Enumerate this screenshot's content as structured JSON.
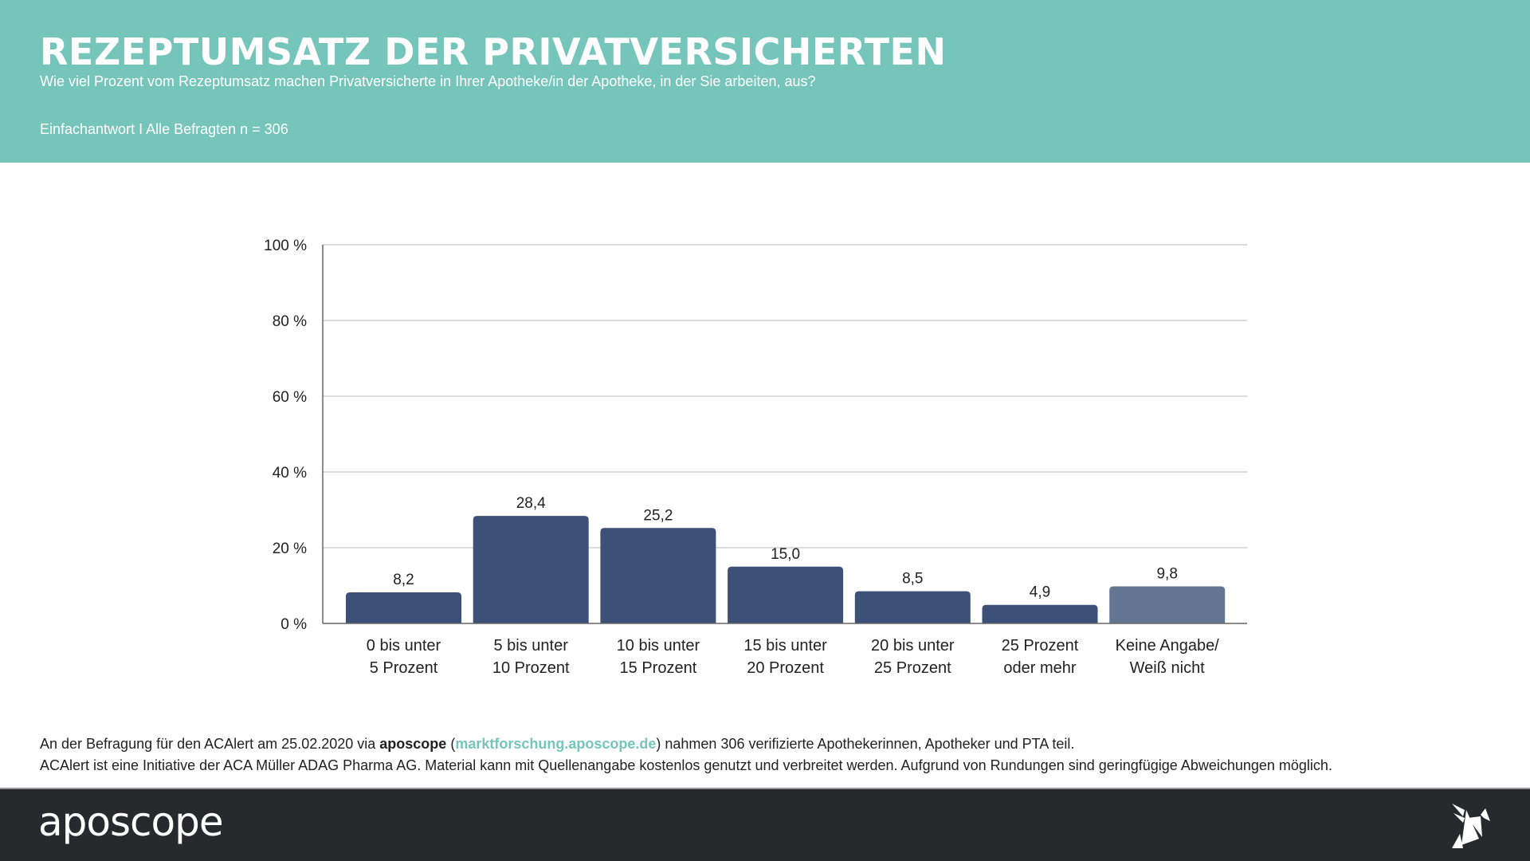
{
  "header": {
    "title": "REZEPTUMSATZ DER PRIVATVERSICHERTEN",
    "subtitle": "Wie viel Prozent vom Rezeptumsatz machen Privatversicherte in Ihrer Apotheke/in der Apotheke, in der Sie arbeiten, aus?",
    "meta": "Einfachantwort I Alle Befragten n = 306"
  },
  "colors": {
    "header_bg": "#76c5bb",
    "bar": "#3d5178",
    "bar_secondary": "#647591",
    "footer_bg": "#28292d",
    "link": "#76c5bb"
  },
  "chart_data": {
    "type": "bar",
    "title": "REZEPTUMSATZ DER PRIVATVERSICHERTEN",
    "xlabel": "",
    "ylabel": "",
    "ylim": [
      0,
      100
    ],
    "yticks": [
      0,
      20,
      40,
      60,
      80,
      100
    ],
    "ytick_labels": [
      "0 %",
      "20 %",
      "40 %",
      "60 %",
      "80 %",
      "100 %"
    ],
    "grid": true,
    "categories": [
      [
        "0 bis unter",
        "5 Prozent"
      ],
      [
        "5 bis unter",
        "10 Prozent"
      ],
      [
        "10 bis unter",
        "15 Prozent"
      ],
      [
        "15 bis unter",
        "20 Prozent"
      ],
      [
        "20 bis unter",
        "25 Prozent"
      ],
      [
        "25 Prozent",
        "oder mehr"
      ],
      [
        "Keine Angabe/",
        "Weiß nicht"
      ]
    ],
    "values": [
      8.2,
      28.4,
      25.2,
      15.0,
      8.5,
      4.9,
      9.8
    ],
    "value_labels": [
      "8,2",
      "28,4",
      "25,2",
      "15,0",
      "8,5",
      "4,9",
      "9,8"
    ],
    "highlight_secondary": [
      false,
      false,
      false,
      false,
      false,
      false,
      true
    ]
  },
  "notes": {
    "line1_pre": "An der Befragung für den ACAlert am 25.02.2020 via ",
    "line1_brand": "aposcope",
    "line1_open": " (",
    "line1_link": "marktforschung.aposcope.de",
    "line1_post": ") nahmen 306 verifizierte Apothekerinnen, Apotheker und PTA teil.",
    "line2": "ACAlert ist eine Initiative der ACA Müller ADAG Pharma AG. Material kann mit Quellenangabe kostenlos genutzt und verbreitet werden. Aufgrund von Rundungen sind geringfügige Abweichungen möglich."
  },
  "footer": {
    "logo": "aposcope",
    "icon": "origami-bird-icon"
  }
}
